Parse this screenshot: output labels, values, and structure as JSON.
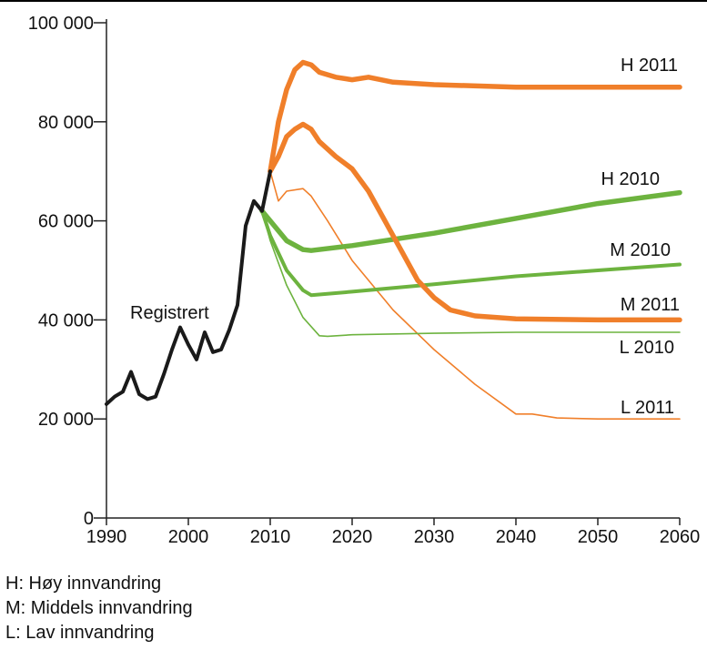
{
  "chart_data": {
    "type": "line",
    "xlim": [
      1990,
      2060
    ],
    "ylim": [
      0,
      100000
    ],
    "x_ticks": [
      1990,
      2000,
      2010,
      2020,
      2030,
      2040,
      2050,
      2060
    ],
    "y_ticks": [
      0,
      20000,
      40000,
      60000,
      80000,
      100000
    ],
    "x_tick_labels": [
      "1990",
      "2000",
      "2010",
      "2020",
      "2030",
      "2040",
      "2050",
      "2060"
    ],
    "y_tick_labels": [
      "0",
      "20 000",
      "40 000",
      "60 000",
      "80 000",
      "100 000"
    ],
    "grid": false,
    "series": [
      {
        "name": "Registrert",
        "color": "#1a1a1a",
        "weight": "medium",
        "points": [
          [
            1990,
            23000
          ],
          [
            1991,
            24500
          ],
          [
            1992,
            25500
          ],
          [
            1993,
            29500
          ],
          [
            1994,
            25000
          ],
          [
            1995,
            24000
          ],
          [
            1996,
            24500
          ],
          [
            1997,
            29000
          ],
          [
            1998,
            34000
          ],
          [
            1999,
            38500
          ],
          [
            2000,
            35000
          ],
          [
            2001,
            32000
          ],
          [
            2002,
            37500
          ],
          [
            2003,
            33500
          ],
          [
            2004,
            34000
          ],
          [
            2005,
            38000
          ],
          [
            2006,
            43000
          ],
          [
            2007,
            59000
          ],
          [
            2008,
            64000
          ],
          [
            2009,
            62000
          ],
          [
            2010,
            70000
          ]
        ]
      },
      {
        "name": "H 2011",
        "color": "#f07f2a",
        "weight": "heavy",
        "points": [
          [
            2010,
            70000
          ],
          [
            2011,
            80000
          ],
          [
            2012,
            86500
          ],
          [
            2013,
            90500
          ],
          [
            2014,
            92000
          ],
          [
            2015,
            91500
          ],
          [
            2016,
            90000
          ],
          [
            2018,
            89000
          ],
          [
            2020,
            88500
          ],
          [
            2022,
            89000
          ],
          [
            2025,
            88000
          ],
          [
            2030,
            87500
          ],
          [
            2040,
            87000
          ],
          [
            2050,
            87000
          ],
          [
            2060,
            87000
          ]
        ]
      },
      {
        "name": "M 2011",
        "color": "#f07f2a",
        "weight": "heavy",
        "points": [
          [
            2010,
            70000
          ],
          [
            2011,
            73000
          ],
          [
            2012,
            77000
          ],
          [
            2013,
            78500
          ],
          [
            2014,
            79500
          ],
          [
            2015,
            78500
          ],
          [
            2016,
            76000
          ],
          [
            2018,
            73000
          ],
          [
            2020,
            70500
          ],
          [
            2022,
            66000
          ],
          [
            2024,
            60000
          ],
          [
            2026,
            54000
          ],
          [
            2028,
            48000
          ],
          [
            2030,
            44500
          ],
          [
            2032,
            42000
          ],
          [
            2035,
            40800
          ],
          [
            2040,
            40200
          ],
          [
            2050,
            40000
          ],
          [
            2060,
            40000
          ]
        ]
      },
      {
        "name": "L 2011",
        "color": "#f07f2a",
        "weight": "light",
        "points": [
          [
            2010,
            70000
          ],
          [
            2011,
            64000
          ],
          [
            2012,
            66000
          ],
          [
            2014,
            66500
          ],
          [
            2015,
            65000
          ],
          [
            2017,
            60000
          ],
          [
            2020,
            52000
          ],
          [
            2025,
            42000
          ],
          [
            2030,
            34000
          ],
          [
            2035,
            27000
          ],
          [
            2040,
            21000
          ],
          [
            2042,
            21000
          ],
          [
            2045,
            20200
          ],
          [
            2050,
            20000
          ],
          [
            2060,
            20000
          ]
        ]
      },
      {
        "name": "H 2010",
        "color": "#6db33f",
        "weight": "heavy",
        "points": [
          [
            2009,
            62000
          ],
          [
            2010,
            60000
          ],
          [
            2012,
            56000
          ],
          [
            2014,
            54200
          ],
          [
            2015,
            54000
          ],
          [
            2020,
            55000
          ],
          [
            2030,
            57500
          ],
          [
            2040,
            60500
          ],
          [
            2050,
            63500
          ],
          [
            2060,
            65700
          ]
        ]
      },
      {
        "name": "M 2010",
        "color": "#6db33f",
        "weight": "medium",
        "points": [
          [
            2009,
            62000
          ],
          [
            2010,
            57000
          ],
          [
            2012,
            50000
          ],
          [
            2014,
            46000
          ],
          [
            2015,
            45000
          ],
          [
            2020,
            45700
          ],
          [
            2030,
            47200
          ],
          [
            2040,
            48800
          ],
          [
            2050,
            50000
          ],
          [
            2060,
            51200
          ]
        ]
      },
      {
        "name": "L 2010",
        "color": "#6db33f",
        "weight": "light",
        "points": [
          [
            2009,
            62000
          ],
          [
            2010,
            56000
          ],
          [
            2012,
            47000
          ],
          [
            2014,
            40500
          ],
          [
            2016,
            36800
          ],
          [
            2017,
            36700
          ],
          [
            2020,
            37000
          ],
          [
            2030,
            37300
          ],
          [
            2040,
            37500
          ],
          [
            2050,
            37500
          ],
          [
            2060,
            37500
          ]
        ]
      }
    ],
    "annotations": [
      {
        "text": "Registrert",
        "series": "Registrert"
      },
      {
        "text": "H 2011",
        "series": "H 2011"
      },
      {
        "text": "H 2010",
        "series": "H 2010"
      },
      {
        "text": "M 2010",
        "series": "M 2010"
      },
      {
        "text": "M 2011",
        "series": "M 2011"
      },
      {
        "text": "L 2010",
        "series": "L 2010"
      },
      {
        "text": "L 2011",
        "series": "L 2011"
      }
    ]
  },
  "notes": [
    "H: Høy innvandring",
    "M: Middels innvandring",
    "L: Lav innvandring"
  ]
}
